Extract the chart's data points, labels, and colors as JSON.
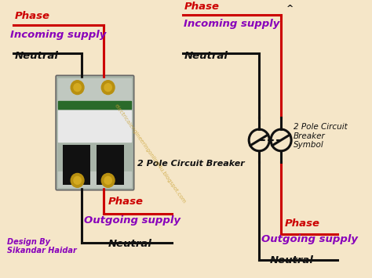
{
  "bg_color": "#f5e6c8",
  "red_color": "#cc0000",
  "black_color": "#111111",
  "purple_color": "#8800bb",
  "watermark_color": "#c8a030",
  "left_phase_label": "Phase",
  "left_incoming_label": "Incoming supply",
  "left_neutral_label": "Neutral",
  "left_outgoing_phase_label": "Phase",
  "left_outgoing_supply_label": "Outgoing supply",
  "left_outgoing_neutral_label": "Neutral",
  "right_phase_label": "Phase",
  "right_incoming_label": "Incoming supply",
  "right_neutral_label": "Neutral",
  "right_outgoing_phase_label": "Phase",
  "right_outgoing_supply_label": "Outgoing supply",
  "right_outgoing_neutral_label": "Neutral",
  "breaker_label": "2 Pole Circuit Breaker",
  "symbol_label": "2 Pole Circuit\nBreaker\nSymbol",
  "design_label": "Design By\nSikandar Haidar",
  "figsize": [
    4.74,
    3.55
  ],
  "dpi": 100
}
